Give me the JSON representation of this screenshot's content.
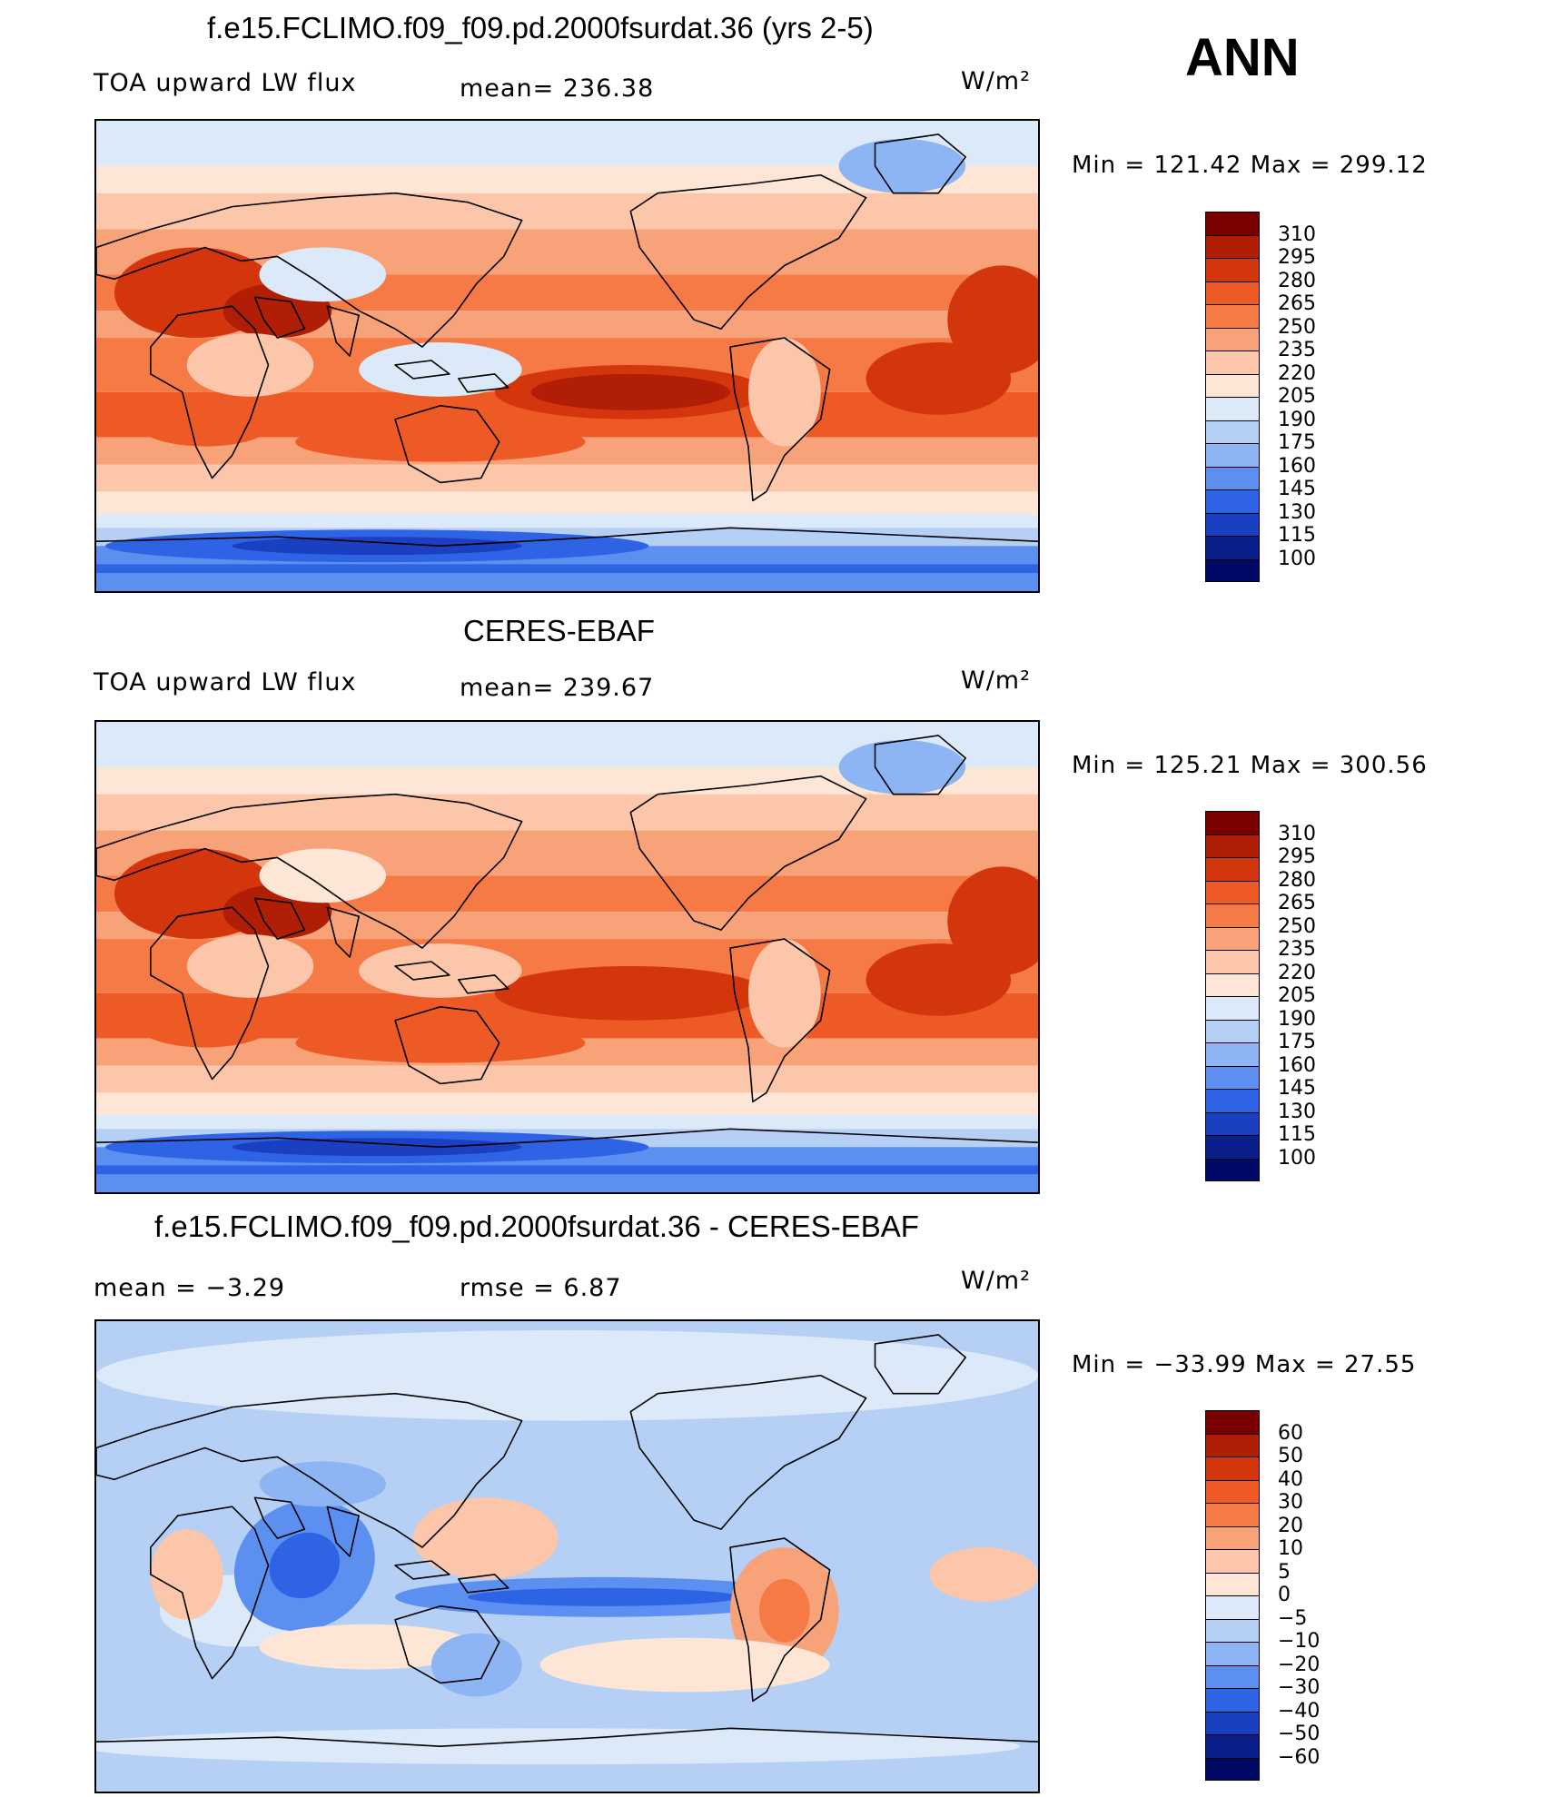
{
  "season": "ANN",
  "units": "W/m²",
  "panels": [
    {
      "id": "model",
      "title": "f.e15.FCLIMO.f09_f09.pd.2000fsurdat.36 (yrs 2-5)",
      "variable": "TOA upward LW flux",
      "stat_text": "mean=  236.38",
      "minmax": "Min  =  121.42  Max  =  299.12",
      "legend_labels": [
        "310",
        "295",
        "280",
        "265",
        "250",
        "235",
        "220",
        "205",
        "190",
        "175",
        "160",
        "145",
        "130",
        "115",
        "100"
      ]
    },
    {
      "id": "obs",
      "title": "CERES-EBAF",
      "variable": "TOA upward LW flux",
      "stat_text": "mean=  239.67",
      "minmax": "Min  =  125.21  Max  =  300.56",
      "legend_labels": [
        "310",
        "295",
        "280",
        "265",
        "250",
        "235",
        "220",
        "205",
        "190",
        "175",
        "160",
        "145",
        "130",
        "115",
        "100"
      ]
    },
    {
      "id": "diff",
      "title": "f.e15.FCLIMO.f09_f09.pd.2000fsurdat.36 - CERES-EBAF",
      "stat_mean": "mean  =    −3.29",
      "stat_rmse": "rmse  =     6.87",
      "minmax": "Min  =  −33.99  Max  =    27.55",
      "legend_labels": [
        "60",
        "50",
        "40",
        "30",
        "20",
        "10",
        "5",
        "0",
        "−5",
        "−10",
        "−20",
        "−30",
        "−40",
        "−50",
        "−60"
      ]
    }
  ],
  "colors": {
    "levels": [
      "#7a0000",
      "#b01e05",
      "#d3350d",
      "#ee5a26",
      "#f57a46",
      "#f8a27a",
      "#fbc6a9",
      "#fde6d6",
      "#dce9f9",
      "#b6d0f5",
      "#8db5f3",
      "#5b8ff0",
      "#2e63e6",
      "#1a3fc0",
      "#0a1f8a",
      "#000a66"
    ]
  }
}
